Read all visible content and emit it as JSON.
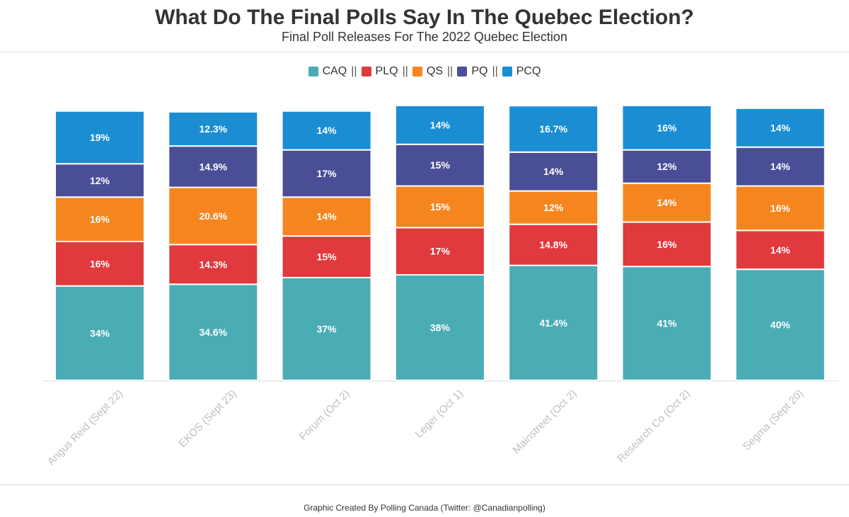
{
  "title": "What Do The Final Polls Say In The Quebec Election?",
  "subtitle": "Final Poll Releases For The 2022 Quebec Election",
  "legend_separator": "||",
  "credit": "Graphic Created By Polling Canada (Twitter: @Canadianpolling)",
  "chart_data": {
    "type": "bar",
    "stacked": true,
    "title": "What Do The Final Polls Say In The Quebec Election?",
    "subtitle": "Final Poll Releases For The 2022 Quebec Election",
    "legend_position": "top-center",
    "grid": false,
    "ylim": [
      0,
      100
    ],
    "categories": [
      "Angus Reid (Sept 22)",
      "EKOS (Sept 23)",
      "Forum (Oct 2)",
      "Leger (Oct 1)",
      "Mainstreet (Oct 2)",
      "Research Co (Oct 2)",
      "Segma (Sept 20)"
    ],
    "series": [
      {
        "name": "CAQ",
        "color": "#4aacb4",
        "values": [
          34,
          34.6,
          37,
          38,
          41.4,
          41,
          40
        ],
        "labels": [
          "34%",
          "34.6%",
          "37%",
          "38%",
          "41.4%",
          "41%",
          "40%"
        ]
      },
      {
        "name": "PLQ",
        "color": "#e0393e",
        "values": [
          16,
          14.3,
          15,
          17,
          14.8,
          16,
          14
        ],
        "labels": [
          "16%",
          "14.3%",
          "15%",
          "17%",
          "14.8%",
          "16%",
          "14%"
        ]
      },
      {
        "name": "QS",
        "color": "#f5861f",
        "values": [
          16,
          20.6,
          14,
          15,
          12,
          14,
          16
        ],
        "labels": [
          "16%",
          "20.6%",
          "14%",
          "15%",
          "12%",
          "14%",
          "16%"
        ]
      },
      {
        "name": "PQ",
        "color": "#4a4e96",
        "values": [
          12,
          14.9,
          17,
          15,
          14,
          12,
          14
        ],
        "labels": [
          "12%",
          "14.9%",
          "17%",
          "15%",
          "14%",
          "12%",
          "14%"
        ]
      },
      {
        "name": "PCQ",
        "color": "#1a8dd3",
        "values": [
          19,
          12.3,
          14,
          14,
          16.7,
          16,
          14
        ],
        "labels": [
          "19%",
          "12.3%",
          "14%",
          "14%",
          "16.7%",
          "16%",
          "14%"
        ]
      }
    ]
  }
}
